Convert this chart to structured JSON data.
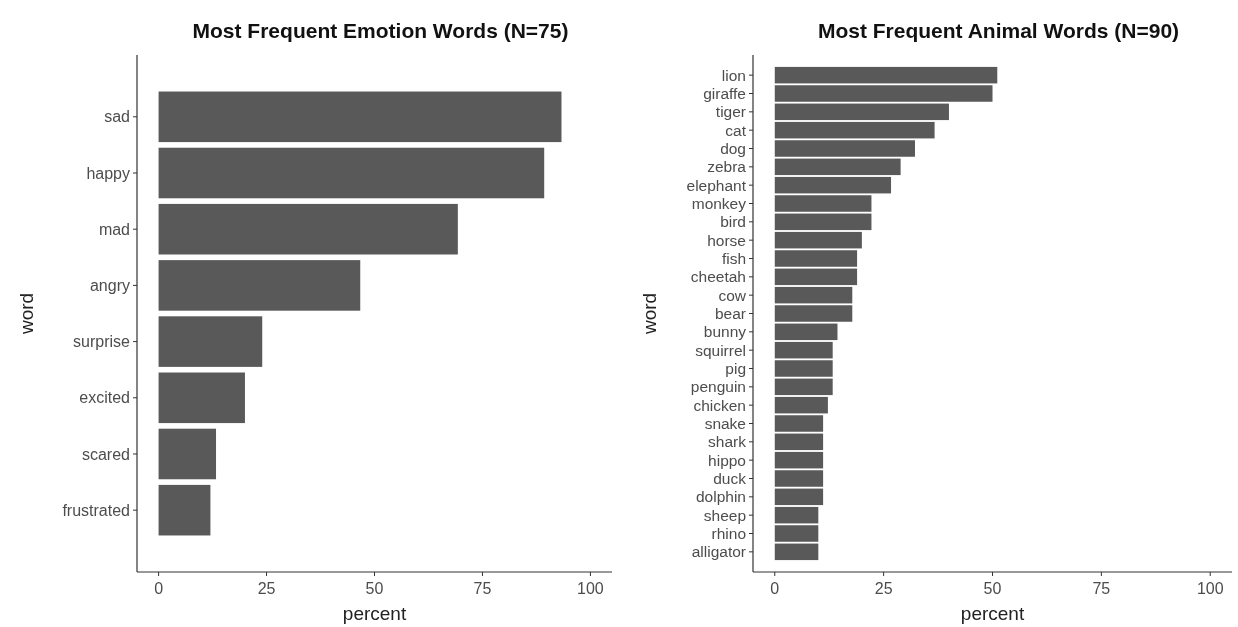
{
  "chart_data": [
    {
      "type": "bar",
      "orientation": "horizontal",
      "title": "Most Frequent Emotion Words (N=75)",
      "xlabel": "percent",
      "ylabel": "word",
      "categories": [
        "sad",
        "happy",
        "mad",
        "angry",
        "surprise",
        "excited",
        "scared",
        "frustrated"
      ],
      "values": [
        93.3,
        89.3,
        69.3,
        46.7,
        24.0,
        20.0,
        13.3,
        12.0
      ],
      "color": "#595959",
      "xlim": [
        -5,
        105
      ],
      "xticks": [
        0,
        25,
        50,
        75,
        100
      ]
    },
    {
      "type": "bar",
      "orientation": "horizontal",
      "title": "Most Frequent Animal Words (N=90)",
      "xlabel": "percent",
      "ylabel": "word",
      "categories": [
        "lion",
        "giraffe",
        "tiger",
        "cat",
        "dog",
        "zebra",
        "elephant",
        "monkey",
        "bird",
        "horse",
        "fish",
        "cheetah",
        "cow",
        "bear",
        "bunny",
        "squirrel",
        "pig",
        "penguin",
        "chicken",
        "snake",
        "shark",
        "hippo",
        "duck",
        "dolphin",
        "sheep",
        "rhino",
        "alligator"
      ],
      "values": [
        51.1,
        50.0,
        40.0,
        36.7,
        32.2,
        28.9,
        26.7,
        22.2,
        22.2,
        20.0,
        18.9,
        18.9,
        17.8,
        17.8,
        14.4,
        13.3,
        13.3,
        13.3,
        12.2,
        11.1,
        11.1,
        11.1,
        11.1,
        11.1,
        10.0,
        10.0,
        10.0
      ],
      "color": "#595959",
      "xlim": [
        -5,
        105
      ],
      "xticks": [
        0,
        25,
        50,
        75,
        100
      ]
    }
  ]
}
